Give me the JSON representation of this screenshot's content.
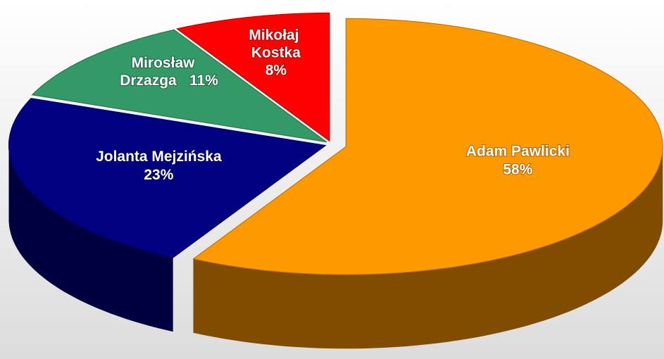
{
  "chart_data": {
    "type": "pie",
    "categories": [
      "Adam Pawlicki",
      "Jolanta Mejzińska",
      "Mirosław Drzazga",
      "Mikołaj Kostka"
    ],
    "values": [
      58,
      23,
      11,
      8
    ],
    "value_labels": [
      "58%",
      "23%",
      "11%",
      "8%"
    ],
    "colors": [
      "#ff9900",
      "#000080",
      "#339966",
      "#ff0000"
    ]
  }
}
